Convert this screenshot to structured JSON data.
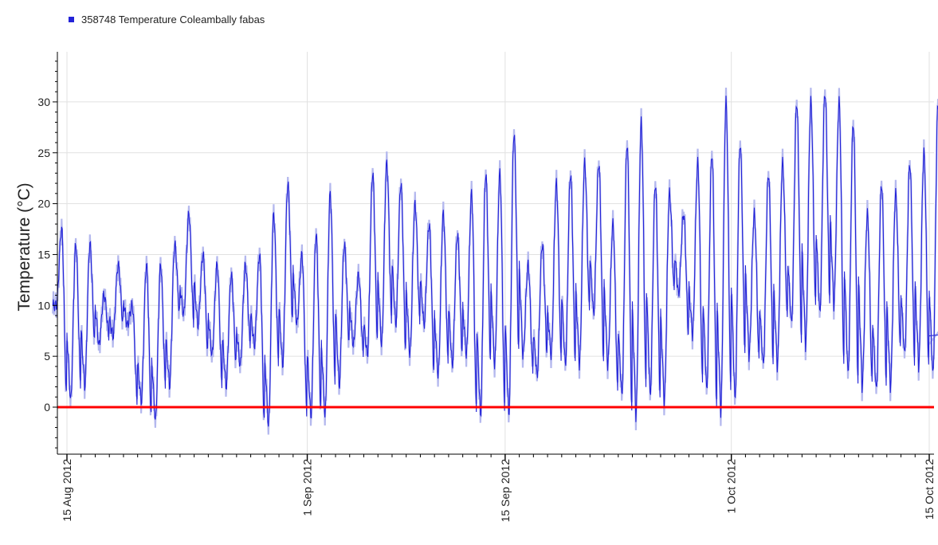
{
  "chart_data": {
    "type": "line",
    "title": "",
    "xlabel": "",
    "ylabel": "Temperature (°C)",
    "xlim": [
      "2012-08-14",
      "2012-10-15"
    ],
    "ylim": [
      -4.5,
      35
    ],
    "grid": true,
    "legend": "top-left",
    "y_ticks": [
      0,
      5,
      10,
      15,
      20,
      25,
      30
    ],
    "y_tick_labels": [
      "0",
      "5",
      "10",
      "15",
      "20",
      "25",
      "30"
    ],
    "x_ticks": [
      "2012-08-15",
      "2012-09-01",
      "2012-09-15",
      "2012-10-01",
      "2012-10-15"
    ],
    "x_tick_labels": [
      "15 Aug 2012",
      "1 Sep 2012",
      "15 Sep 2012",
      "1 Oct 2012",
      "15 Oct 2012"
    ],
    "threshold_line": {
      "y": 0,
      "color": "#ff0000"
    },
    "series": [
      {
        "name": "358748  Temperature Coleambally fabas",
        "color": "#2323d8",
        "band_color": "#b4b8ee",
        "x_daily": [
          "2012-08-14",
          "2012-08-15",
          "2012-08-16",
          "2012-08-17",
          "2012-08-18",
          "2012-08-19",
          "2012-08-20",
          "2012-08-21",
          "2012-08-22",
          "2012-08-23",
          "2012-08-24",
          "2012-08-25",
          "2012-08-26",
          "2012-08-27",
          "2012-08-28",
          "2012-08-29",
          "2012-08-30",
          "2012-08-31",
          "2012-09-01",
          "2012-09-02",
          "2012-09-03",
          "2012-09-04",
          "2012-09-05",
          "2012-09-06",
          "2012-09-07",
          "2012-09-08",
          "2012-09-09",
          "2012-09-10",
          "2012-09-11",
          "2012-09-12",
          "2012-09-13",
          "2012-09-14",
          "2012-09-15",
          "2012-09-16",
          "2012-09-17",
          "2012-09-18",
          "2012-09-19",
          "2012-09-20",
          "2012-09-21",
          "2012-09-22",
          "2012-09-23",
          "2012-09-24",
          "2012-09-25",
          "2012-09-26",
          "2012-09-27",
          "2012-09-28",
          "2012-09-29",
          "2012-09-30",
          "2012-10-01",
          "2012-10-02",
          "2012-10-03",
          "2012-10-04",
          "2012-10-05",
          "2012-10-06",
          "2012-10-07",
          "2012-10-08",
          "2012-10-09",
          "2012-10-10",
          "2012-10-11",
          "2012-10-12",
          "2012-10-13",
          "2012-10-14",
          "2012-10-15"
        ],
        "daily_max": [
          17.5,
          16,
          16,
          11,
          14,
          10,
          14,
          14,
          16,
          19,
          15,
          14,
          13,
          14,
          15,
          19,
          22,
          15,
          17,
          21,
          16,
          13,
          23,
          24,
          22,
          20,
          18,
          19,
          17,
          21,
          23,
          23,
          27,
          14,
          16,
          22,
          23,
          24,
          24,
          18,
          26,
          28,
          22,
          21,
          19,
          24,
          25,
          30,
          26,
          19,
          23,
          24,
          30,
          30,
          31,
          30,
          28,
          19,
          22,
          21,
          24,
          25,
          30
        ],
        "daily_min": [
          10,
          0.5,
          2,
          6,
          7,
          8,
          0.5,
          -1.5,
          2,
          9,
          8,
          5,
          2,
          4,
          6,
          -2,
          4,
          8,
          -1,
          -1,
          2,
          6,
          5,
          6,
          8,
          5,
          8,
          3,
          4,
          5,
          -1,
          4,
          -1,
          5,
          3,
          5,
          4,
          4,
          9,
          4,
          1,
          -1,
          1,
          0.5,
          11,
          7,
          1.5,
          -0.5,
          0.5,
          5,
          4,
          4,
          8,
          6,
          9,
          10,
          3,
          2,
          1.5,
          2,
          5,
          4,
          3
        ],
        "last_value": 7
      }
    ]
  }
}
